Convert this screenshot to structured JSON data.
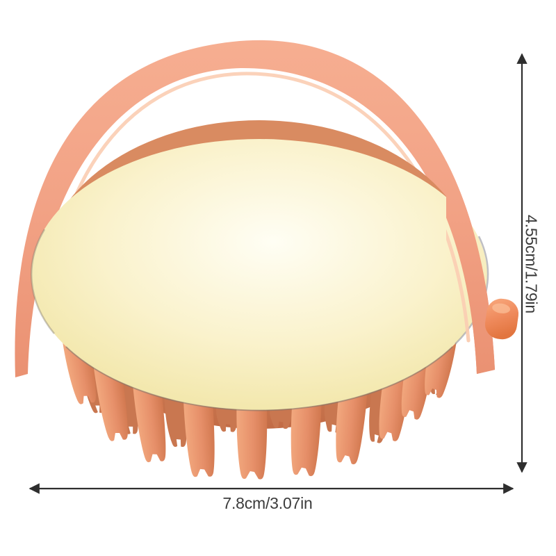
{
  "product": {
    "name": "silicone-shampoo-scalp-massager-brush",
    "colors": {
      "handle_stops": [
        "#F6AE91",
        "#F2A285",
        "#EA9172"
      ],
      "handle_highlight": "#FBCDB2",
      "dome_stops": [
        "#FFFEF4",
        "#FAF2CC",
        "#F3E8AE",
        "#EADC99"
      ],
      "underside_stops": [
        "#D98B61",
        "#C26C46"
      ],
      "bristle_stops": [
        "#F2A87E",
        "#E68F69",
        "#D1784F"
      ],
      "bristle_back": "#C97750",
      "knob_stops": [
        "#F9AB80",
        "#EF8A5C",
        "#E2753F"
      ],
      "rim_seam": "#7E756B",
      "edge_seam": "#94949C"
    }
  },
  "annotations": {
    "height_label": "4.55cm/1.79in",
    "width_label": "7.8cm/3.07in",
    "line_color": "#2E2E2E",
    "text_color": "#3C3C3C"
  }
}
